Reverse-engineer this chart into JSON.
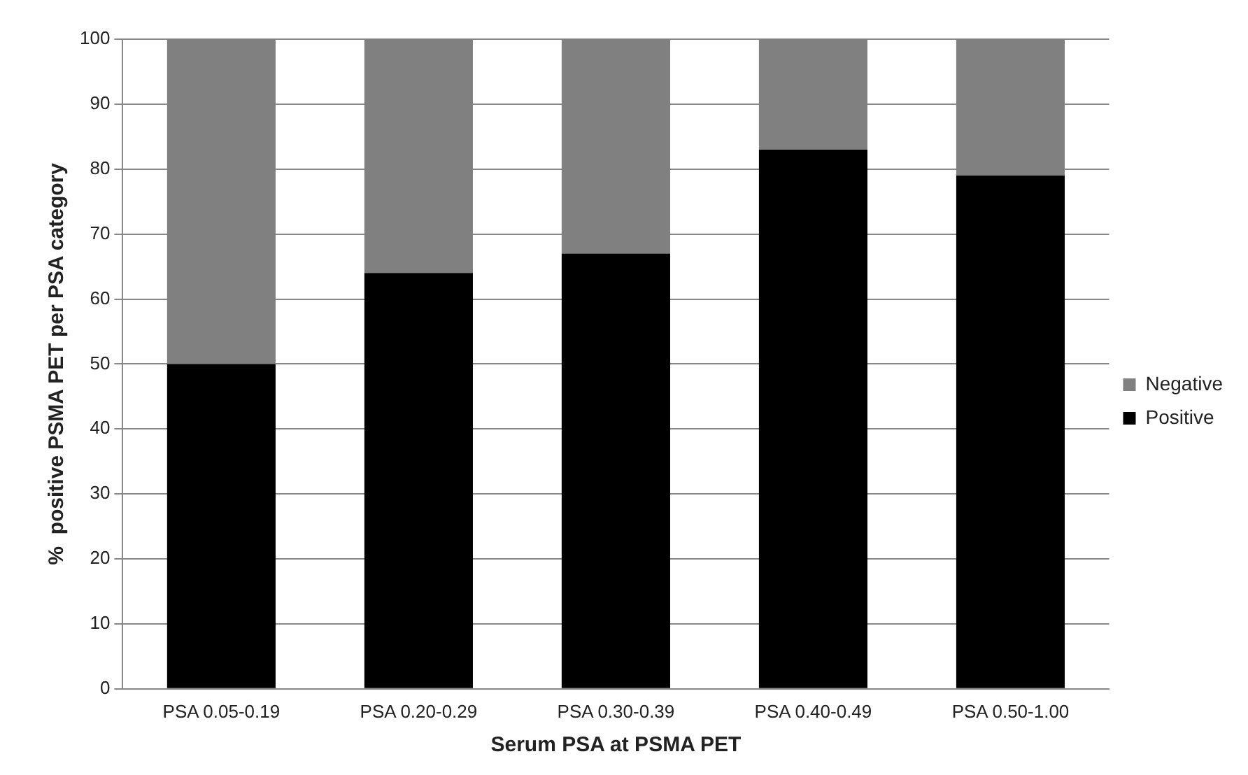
{
  "chart_data": {
    "type": "bar",
    "stacked": true,
    "xlabel": "Serum PSA at PSMA PET",
    "ylabel": "%  positive PSMA PET per PSA category",
    "categories": [
      "PSA 0.05-0.19",
      "PSA 0.20-0.29",
      "PSA 0.30-0.39",
      "PSA 0.40-0.49",
      "PSA 0.50-1.00"
    ],
    "series": [
      {
        "name": "Positive",
        "color": "#000000",
        "values": [
          50,
          64,
          67,
          83,
          79
        ]
      },
      {
        "name": "Negative",
        "color": "#808080",
        "values": [
          50,
          36,
          33,
          17,
          21
        ]
      }
    ],
    "ylim": [
      0,
      100
    ],
    "yticks": [
      0,
      10,
      20,
      30,
      40,
      50,
      60,
      70,
      80,
      90,
      100
    ],
    "grid": "y",
    "legend": "right"
  }
}
